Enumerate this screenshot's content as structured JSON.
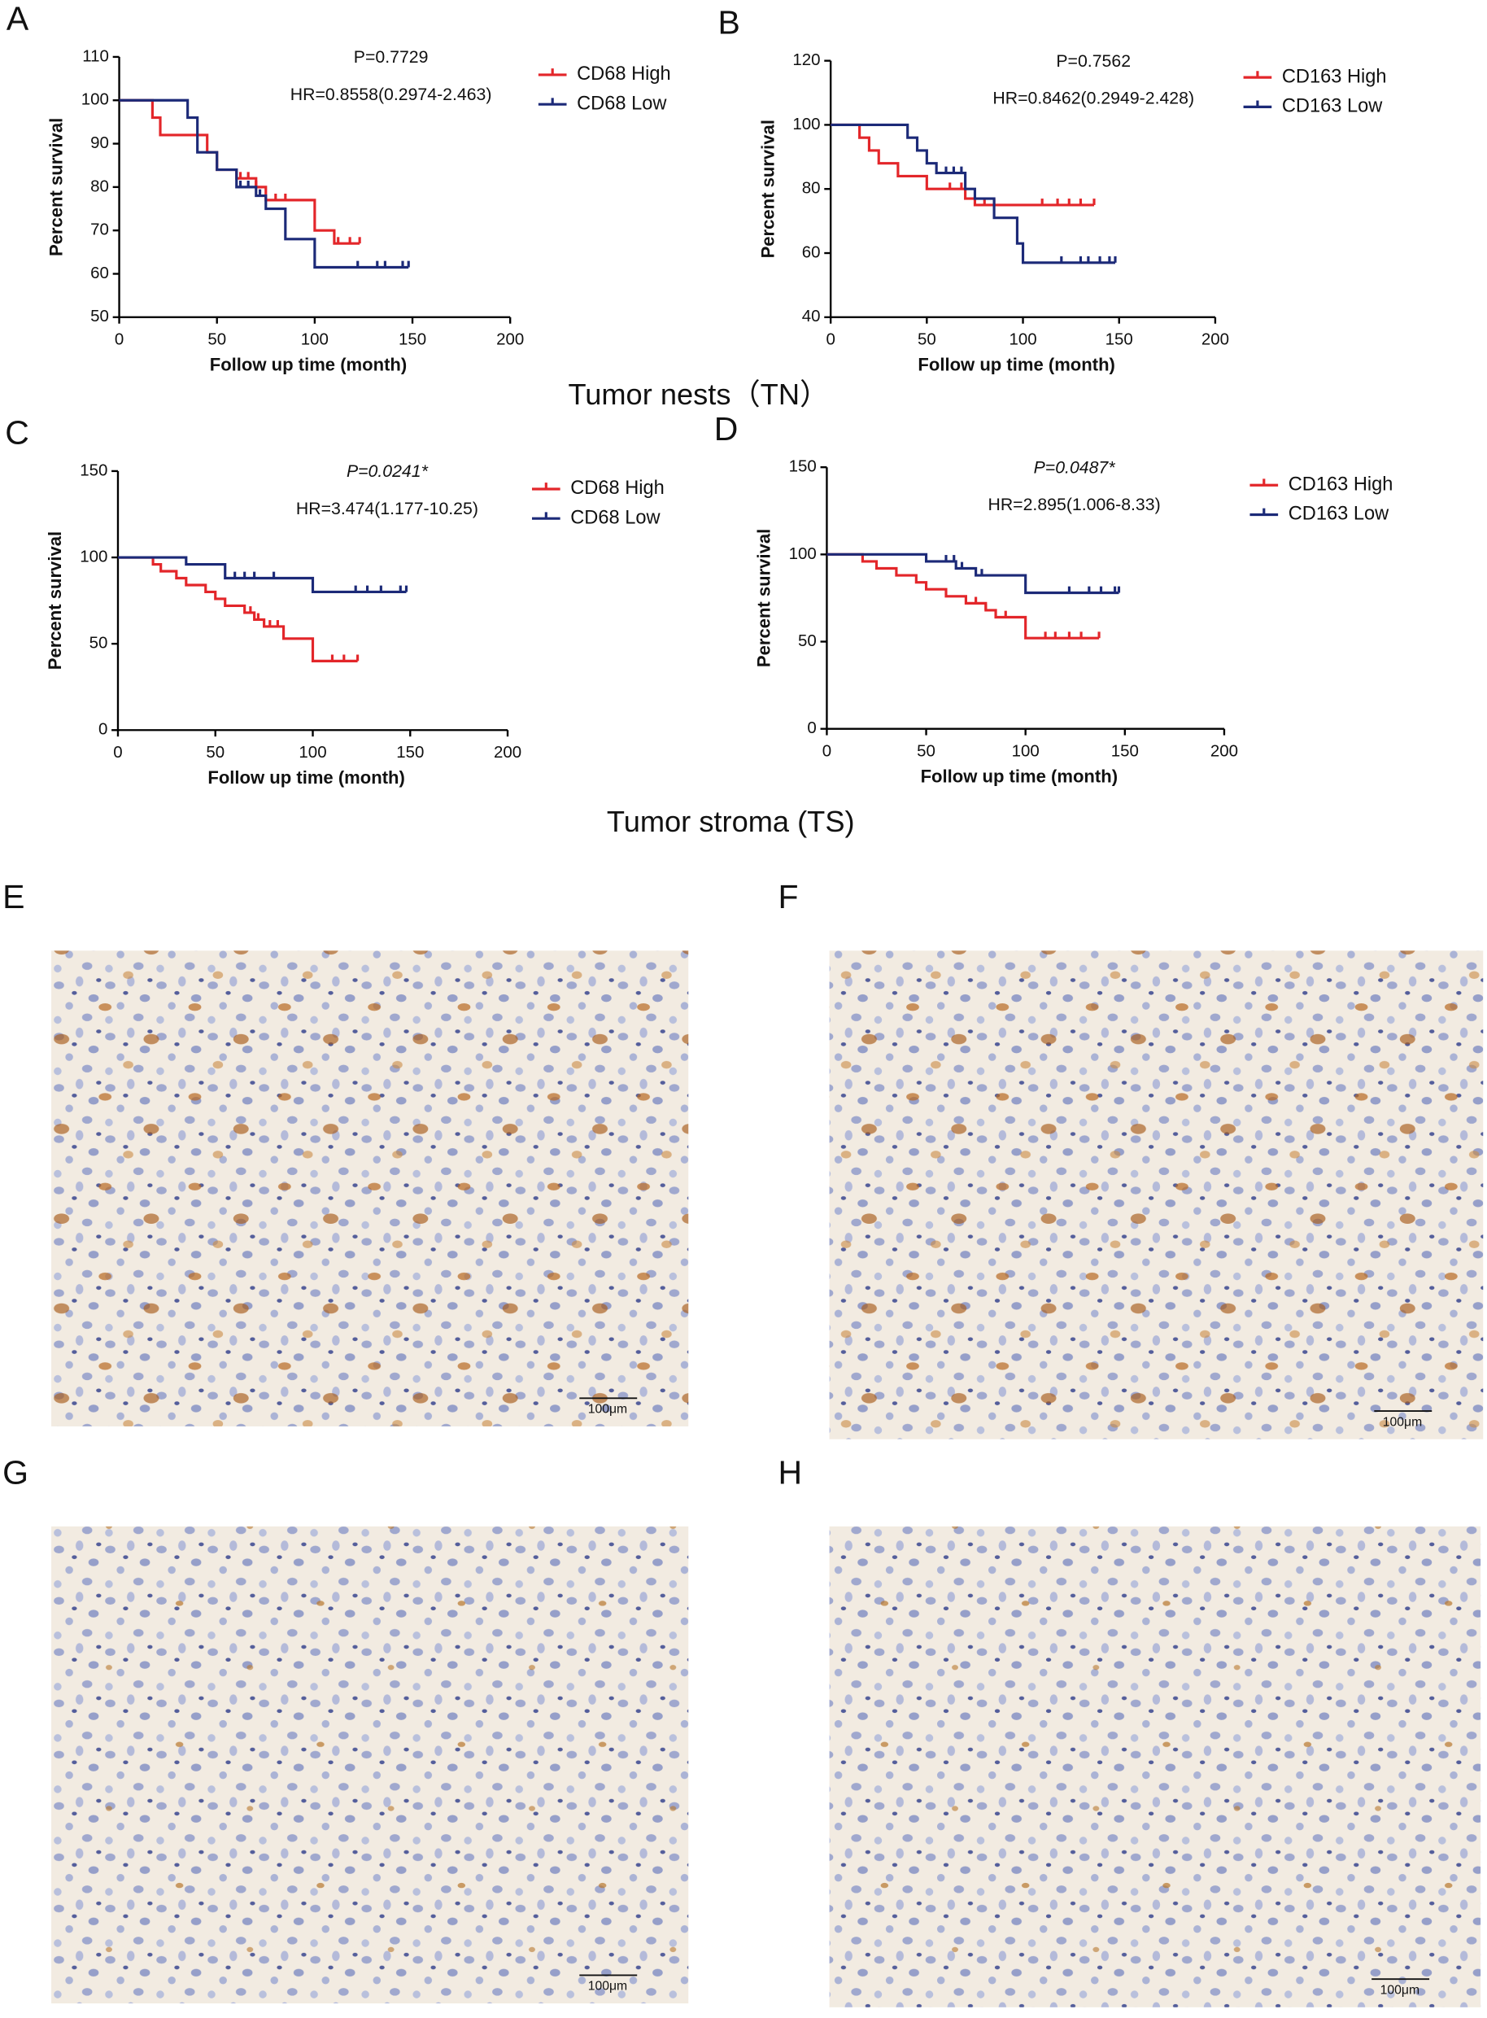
{
  "chart_data": [
    {
      "type": "line",
      "panel": "A",
      "p_label": "P=0.7729",
      "hr_label": "HR=0.8558(0.2974-2.463)",
      "x_label": "Follow up time (month)",
      "y_label": "Percent survival",
      "xlim": [
        0,
        200
      ],
      "xticks": [
        0,
        50,
        100,
        150,
        200
      ],
      "ylim": [
        50,
        110
      ],
      "yticks": [
        50,
        60,
        70,
        80,
        90,
        100,
        110
      ],
      "series": [
        {
          "name": "CD68 High",
          "color": "#e3262a",
          "x": [
            0,
            17,
            21,
            45,
            50,
            60,
            70,
            75,
            100,
            110
          ],
          "values": [
            100,
            96,
            92,
            88,
            84,
            82,
            80,
            77,
            70,
            67
          ],
          "censored": [
            62,
            66,
            70,
            80,
            85,
            112,
            118,
            123
          ]
        },
        {
          "name": "CD68 Low",
          "color": "#1c2a78",
          "x": [
            0,
            35,
            40,
            50,
            60,
            70,
            75,
            85,
            100
          ],
          "values": [
            100,
            96,
            88,
            84,
            80,
            78,
            75,
            68,
            61.5
          ],
          "censored": [
            62,
            66,
            72,
            122,
            132,
            136,
            145,
            148
          ]
        }
      ]
    },
    {
      "type": "line",
      "panel": "B",
      "p_label": "P=0.7562",
      "hr_label": "HR=0.8462(0.2949-2.428)",
      "x_label": "Follow up time (month)",
      "y_label": "Percent survival",
      "xlim": [
        0,
        200
      ],
      "xticks": [
        0,
        50,
        100,
        150,
        200
      ],
      "ylim": [
        40,
        120
      ],
      "yticks": [
        40,
        60,
        80,
        100,
        120
      ],
      "series": [
        {
          "name": "CD163 High",
          "color": "#e3262a",
          "x": [
            0,
            15,
            20,
            25,
            35,
            50,
            70,
            75
          ],
          "values": [
            100,
            96,
            92,
            88,
            84,
            80,
            77,
            75
          ],
          "censored": [
            62,
            68,
            80,
            85,
            110,
            118,
            124,
            130,
            137
          ]
        },
        {
          "name": "CD163 Low",
          "color": "#1c2a78",
          "x": [
            0,
            40,
            45,
            50,
            55,
            70,
            75,
            85,
            97,
            100
          ],
          "values": [
            100,
            96,
            92,
            88,
            85,
            80,
            77,
            71,
            63,
            57
          ],
          "censored": [
            60,
            64,
            68,
            120,
            130,
            134,
            140,
            145,
            148
          ]
        }
      ]
    },
    {
      "type": "line",
      "panel": "C",
      "p_label": "P=0.0241*",
      "hr_label": "HR=3.474(1.177-10.25)",
      "x_label": "Follow up time (month)",
      "y_label": "Percent survival",
      "xlim": [
        0,
        200
      ],
      "xticks": [
        0,
        50,
        100,
        150,
        200
      ],
      "ylim": [
        0,
        150
      ],
      "yticks": [
        0,
        50,
        100,
        150
      ],
      "series": [
        {
          "name": "CD68 High",
          "color": "#e3262a",
          "x": [
            0,
            18,
            22,
            30,
            35,
            45,
            50,
            55,
            65,
            70,
            75,
            85,
            100
          ],
          "values": [
            100,
            96,
            92,
            88,
            84,
            80,
            76,
            72,
            68,
            64,
            60,
            53,
            40
          ],
          "censored": [
            68,
            72,
            78,
            82,
            110,
            116,
            123
          ]
        },
        {
          "name": "CD68 Low",
          "color": "#1c2a78",
          "x": [
            0,
            35,
            55,
            100
          ],
          "values": [
            100,
            96,
            88,
            80
          ],
          "censored": [
            60,
            65,
            70,
            80,
            122,
            128,
            135,
            145,
            148
          ]
        }
      ]
    },
    {
      "type": "line",
      "panel": "D",
      "p_label": "P=0.0487*",
      "hr_label": "HR=2.895(1.006-8.33)",
      "x_label": "Follow up time (month)",
      "y_label": "Percent survival",
      "xlim": [
        0,
        200
      ],
      "xticks": [
        0,
        50,
        100,
        150,
        200
      ],
      "ylim": [
        0,
        150
      ],
      "yticks": [
        0,
        50,
        100,
        150
      ],
      "series": [
        {
          "name": "CD163 High",
          "color": "#e3262a",
          "x": [
            0,
            18,
            25,
            35,
            45,
            50,
            60,
            70,
            80,
            85,
            100
          ],
          "values": [
            100,
            96,
            92,
            88,
            84,
            80,
            76,
            72,
            68,
            64,
            52
          ],
          "censored": [
            75,
            80,
            90,
            110,
            115,
            122,
            128,
            137
          ]
        },
        {
          "name": "CD163 Low",
          "color": "#1c2a78",
          "x": [
            0,
            50,
            65,
            75,
            100
          ],
          "values": [
            100,
            96,
            92,
            88,
            78
          ],
          "censored": [
            60,
            64,
            68,
            78,
            122,
            132,
            138,
            145,
            147
          ]
        }
      ]
    }
  ],
  "section_labels": [
    "Tumor nests（TN）",
    "Tumor stroma (TS)"
  ],
  "images": [
    {
      "panel": "E",
      "scale_bar": "100μm"
    },
    {
      "panel": "F",
      "scale_bar": "100μm"
    },
    {
      "panel": "G",
      "scale_bar": "100μm"
    },
    {
      "panel": "H",
      "scale_bar": "100μm"
    }
  ]
}
